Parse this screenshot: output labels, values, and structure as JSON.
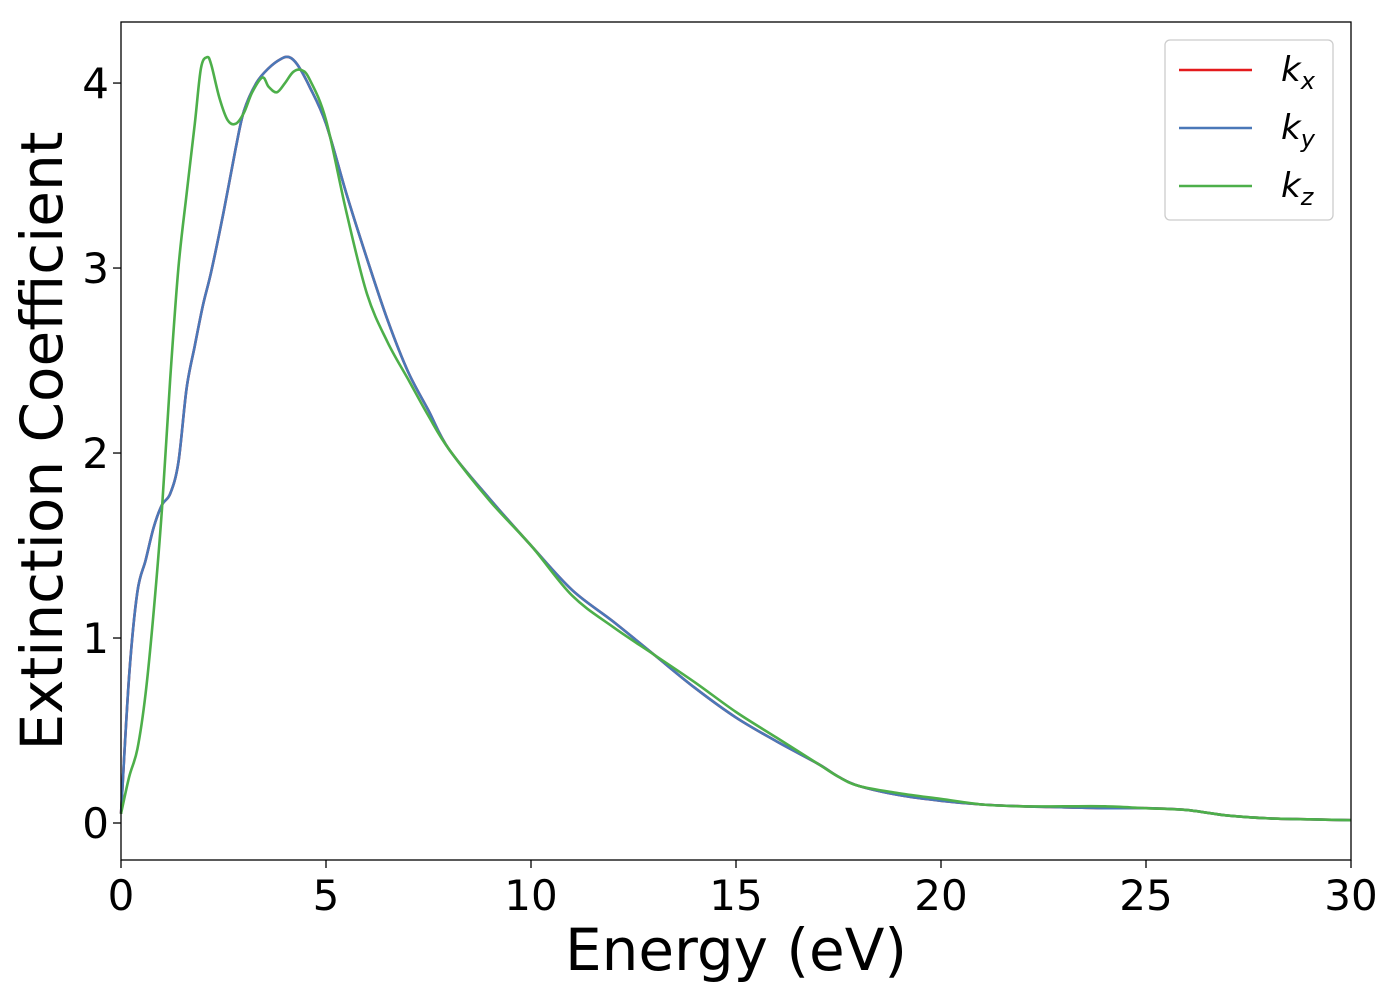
{
  "chart_data": {
    "type": "line",
    "xlabel": "Energy (eV)",
    "ylabel": "Extinction Coefficient",
    "xlim": [
      0,
      30
    ],
    "ylim": [
      -0.2,
      4.33
    ],
    "xticks": [
      "0",
      "5",
      "10",
      "15",
      "20",
      "25",
      "30"
    ],
    "yticks": [
      "0",
      "1",
      "2",
      "3",
      "4"
    ],
    "xtick_values": [
      0,
      5,
      10,
      15,
      20,
      25,
      30
    ],
    "ytick_values": [
      0,
      1,
      2,
      3,
      4
    ],
    "grid": false,
    "legend_position": "top-right",
    "series": [
      {
        "name": "k_x",
        "legend_main": "k",
        "legend_sub": "x",
        "color": "#e41a1c",
        "x": [
          0,
          0.2,
          0.4,
          0.6,
          0.8,
          1.0,
          1.2,
          1.4,
          1.6,
          1.8,
          2.0,
          2.2,
          2.5,
          2.8,
          3.0,
          3.3,
          3.6,
          3.9,
          4.1,
          4.3,
          4.6,
          5.0,
          5.5,
          6.0,
          6.5,
          7.0,
          7.5,
          8.0,
          9.0,
          10.0,
          11.0,
          12.0,
          13.0,
          14.0,
          15.0,
          16.0,
          17.0,
          17.5,
          18.0,
          19.0,
          20.0,
          21.0,
          22.0,
          23.0,
          24.0,
          25.0,
          26.0,
          27.0,
          28.0,
          29.0,
          30.0
        ],
        "values": [
          0.05,
          0.8,
          1.25,
          1.42,
          1.6,
          1.72,
          1.78,
          1.95,
          2.35,
          2.58,
          2.8,
          2.98,
          3.3,
          3.65,
          3.85,
          4.0,
          4.08,
          4.13,
          4.14,
          4.1,
          3.98,
          3.78,
          3.4,
          3.05,
          2.72,
          2.44,
          2.23,
          2.02,
          1.75,
          1.5,
          1.26,
          1.09,
          0.91,
          0.73,
          0.57,
          0.44,
          0.32,
          0.25,
          0.2,
          0.15,
          0.12,
          0.1,
          0.09,
          0.085,
          0.08,
          0.08,
          0.07,
          0.04,
          0.025,
          0.02,
          0.015
        ]
      },
      {
        "name": "k_y",
        "legend_main": "k",
        "legend_sub": "y",
        "color": "#4a78b8",
        "x": [
          0,
          0.2,
          0.4,
          0.6,
          0.8,
          1.0,
          1.2,
          1.4,
          1.6,
          1.8,
          2.0,
          2.2,
          2.5,
          2.8,
          3.0,
          3.3,
          3.6,
          3.9,
          4.1,
          4.3,
          4.6,
          5.0,
          5.5,
          6.0,
          6.5,
          7.0,
          7.5,
          8.0,
          9.0,
          10.0,
          11.0,
          12.0,
          13.0,
          14.0,
          15.0,
          16.0,
          17.0,
          17.5,
          18.0,
          19.0,
          20.0,
          21.0,
          22.0,
          23.0,
          24.0,
          25.0,
          26.0,
          27.0,
          28.0,
          29.0,
          30.0
        ],
        "values": [
          0.05,
          0.8,
          1.25,
          1.42,
          1.6,
          1.72,
          1.78,
          1.95,
          2.35,
          2.58,
          2.8,
          2.98,
          3.3,
          3.65,
          3.85,
          4.0,
          4.08,
          4.13,
          4.14,
          4.1,
          3.98,
          3.78,
          3.4,
          3.05,
          2.72,
          2.44,
          2.23,
          2.02,
          1.75,
          1.5,
          1.26,
          1.09,
          0.91,
          0.73,
          0.57,
          0.44,
          0.32,
          0.25,
          0.2,
          0.15,
          0.12,
          0.1,
          0.09,
          0.085,
          0.08,
          0.08,
          0.07,
          0.04,
          0.025,
          0.02,
          0.015
        ]
      },
      {
        "name": "k_z",
        "legend_main": "k",
        "legend_sub": "z",
        "color": "#4daf4a",
        "x": [
          0,
          0.2,
          0.4,
          0.6,
          0.8,
          1.0,
          1.2,
          1.4,
          1.6,
          1.8,
          1.95,
          2.1,
          2.2,
          2.4,
          2.6,
          2.8,
          3.0,
          3.2,
          3.45,
          3.6,
          3.8,
          4.0,
          4.2,
          4.4,
          4.6,
          5.0,
          5.5,
          6.0,
          6.5,
          7.0,
          7.5,
          8.0,
          9.0,
          10.0,
          11.0,
          12.0,
          13.0,
          14.0,
          15.0,
          16.0,
          17.0,
          17.5,
          18.0,
          19.0,
          20.0,
          21.0,
          22.0,
          23.0,
          24.0,
          25.0,
          26.0,
          27.0,
          28.0,
          29.0,
          30.0
        ],
        "values": [
          0.05,
          0.25,
          0.4,
          0.7,
          1.15,
          1.7,
          2.4,
          3.0,
          3.4,
          3.78,
          4.08,
          4.14,
          4.1,
          3.92,
          3.8,
          3.78,
          3.84,
          3.95,
          4.03,
          3.98,
          3.95,
          4.0,
          4.06,
          4.07,
          4.02,
          3.8,
          3.3,
          2.86,
          2.6,
          2.4,
          2.2,
          2.02,
          1.74,
          1.5,
          1.23,
          1.06,
          0.91,
          0.76,
          0.6,
          0.46,
          0.32,
          0.25,
          0.2,
          0.16,
          0.13,
          0.1,
          0.09,
          0.09,
          0.09,
          0.08,
          0.07,
          0.04,
          0.025,
          0.02,
          0.015
        ]
      }
    ]
  }
}
